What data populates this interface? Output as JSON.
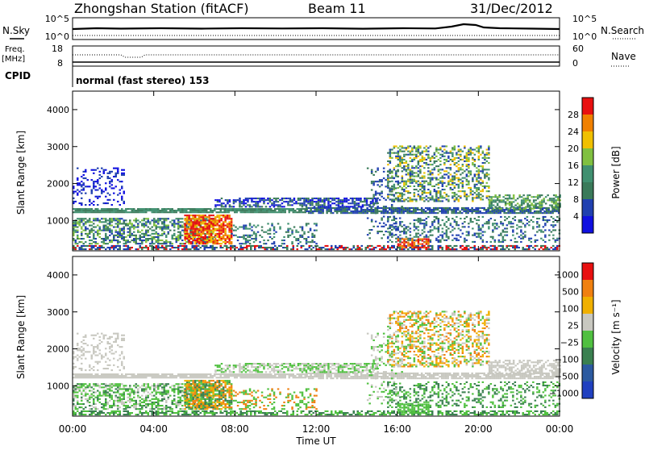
{
  "header": {
    "station": "Zhongshan Station (fitACF)",
    "beam": "Beam 11",
    "date": "31/Dec/2012"
  },
  "top_panels": {
    "nsky_label": "N.Sky",
    "nsky_ticks": [
      "10^5",
      "10^0"
    ],
    "nsearch_label": "N.Search",
    "nsearch_ticks": [
      "10^5",
      "10^0"
    ],
    "freq_label": "Freq.",
    "freq_unit": "[MHz]",
    "freq_ticks": [
      "18",
      "8"
    ],
    "nave_label": "Nave",
    "nave_ticks": [
      "60",
      "0"
    ],
    "cpid_label": "CPID",
    "cpid_value": "normal (fast stereo) 153"
  },
  "chart_data": [
    {
      "type": "heatmap",
      "name": "power",
      "ylabel": "Slant Range [km]",
      "yticks": [
        "4000",
        "3000",
        "2000",
        "1000"
      ],
      "ylim": [
        180,
        4500
      ],
      "colorbar_label": "Power [dB]",
      "colorbar_ticks": [
        "28",
        "24",
        "20",
        "16",
        "12",
        "8",
        "4"
      ],
      "colors": [
        "#1010e0",
        "#2040b0",
        "#3a7a5a",
        "#409070",
        "#80c040",
        "#f0c000",
        "#f08000",
        "#e81010"
      ],
      "grid": false
    },
    {
      "type": "heatmap",
      "name": "velocity",
      "ylabel": "Slant Range [km]",
      "yticks": [
        "4000",
        "3000",
        "2000",
        "1000"
      ],
      "ylim": [
        180,
        4500
      ],
      "colorbar_label": "Velocity [m s⁻¹]",
      "colorbar_ticks": [
        "1000",
        "500",
        "100",
        "25",
        "−25",
        "−100",
        "−500",
        "−1000"
      ],
      "colors": [
        "#2040c0",
        "#2c5aa0",
        "#3a8050",
        "#50c040",
        "#c8c8c0",
        "#f0b000",
        "#f08010",
        "#e81010"
      ],
      "grid": false
    }
  ],
  "xaxis": {
    "label": "Time UT",
    "ticks": [
      "00:00",
      "04:00",
      "08:00",
      "12:00",
      "16:00",
      "20:00",
      "00:00"
    ]
  }
}
